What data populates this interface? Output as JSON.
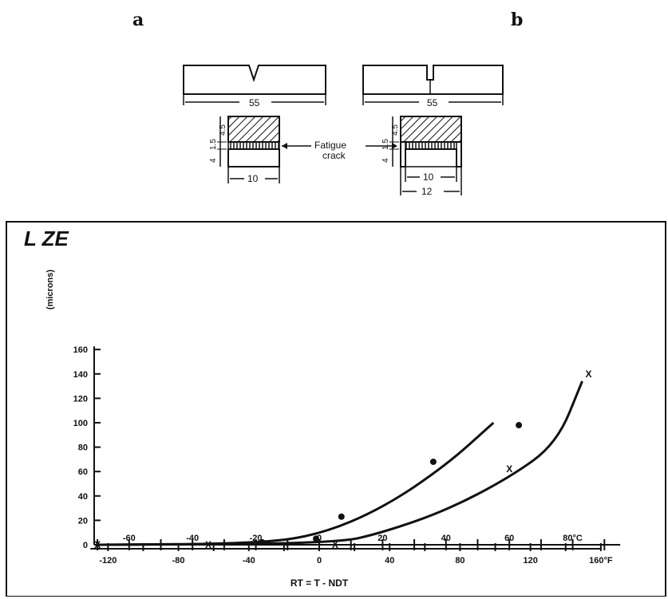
{
  "labels": {
    "a": "a",
    "b": "b"
  },
  "specimen": {
    "length_a": "55",
    "length_b": "55",
    "dim_45_a": "4.5",
    "dim_15_a": "1.5",
    "dim_4_a": "4",
    "dim_45_b": "4.5",
    "dim_15_b": "1.5",
    "dim_4_b": "4",
    "width_a": "10",
    "width_b": "10",
    "width_b2": "12",
    "fatigue_line1": "Fatigue",
    "fatigue_line2": "crack"
  },
  "chart_data": {
    "type": "scatter",
    "title": "L ZE",
    "ylabel": "(microns)",
    "xlabel": "RT = T - NDT",
    "ylim": [
      0,
      160
    ],
    "xlim_C": [
      -70,
      95
    ],
    "xlim_F": [
      -130,
      160
    ],
    "y_ticks": [
      0,
      20,
      40,
      60,
      80,
      100,
      120,
      140,
      160
    ],
    "y_tick_labels": [
      "0",
      "20",
      "40",
      "60",
      "80",
      "100",
      "120",
      "140",
      "160"
    ],
    "x_ticks_C": [
      -60,
      -40,
      -20,
      0,
      20,
      40,
      60,
      80
    ],
    "x_tick_labels_C": [
      "-60",
      "-40",
      "-20",
      "0",
      "20",
      "40",
      "60",
      "80°C"
    ],
    "x_ticks_F": [
      -120,
      -80,
      -40,
      0,
      40,
      80,
      120,
      160
    ],
    "x_tick_labels_F": [
      "-120",
      "-80",
      "-40",
      "0",
      "40",
      "80",
      "120",
      "160°F"
    ],
    "series": [
      {
        "marker": "dot",
        "x": [
          -18,
          -1,
          7,
          36,
          63
        ],
        "y": [
          2,
          5,
          23,
          68,
          98
        ]
      },
      {
        "marker": "x",
        "x": [
          -70,
          -35,
          5,
          60,
          85
        ],
        "y": [
          0,
          0,
          0,
          62,
          140
        ]
      }
    ],
    "curves": [
      {
        "x": [
          -70,
          -20,
          0,
          20,
          40,
          55
        ],
        "y": [
          0,
          1,
          8,
          30,
          65,
          100
        ]
      },
      {
        "x": [
          -70,
          5,
          20,
          40,
          60,
          75,
          83
        ],
        "y": [
          0,
          1,
          10,
          28,
          55,
          83,
          134
        ]
      }
    ],
    "marker_labels": [
      "X",
      "X",
      "X",
      "X",
      "X"
    ]
  }
}
